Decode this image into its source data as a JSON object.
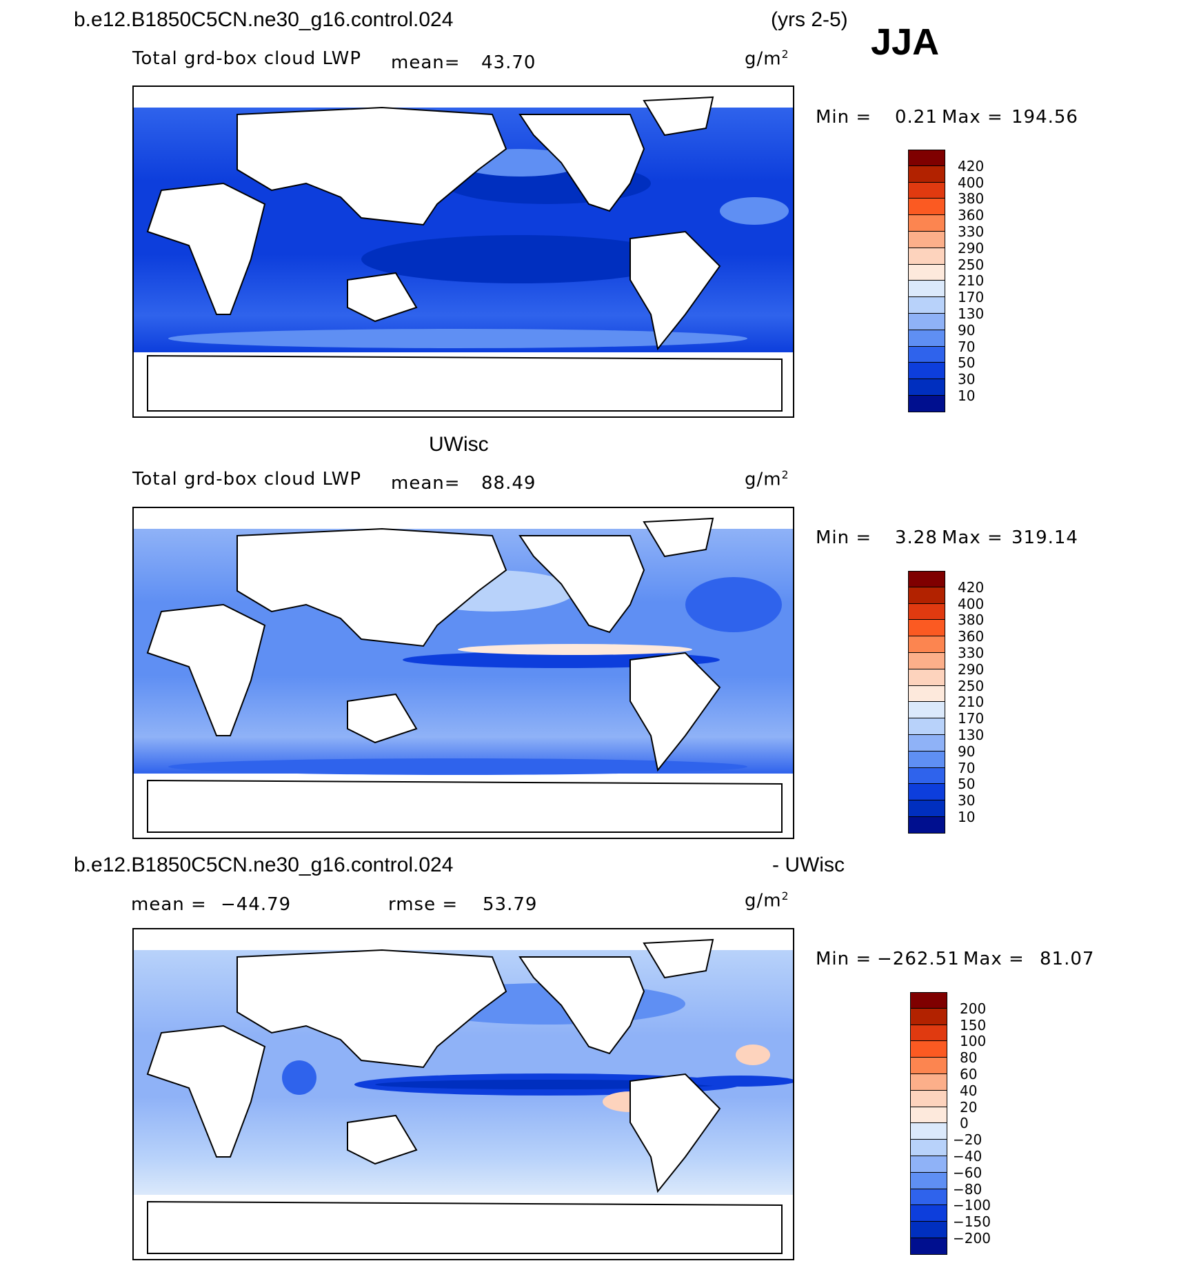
{
  "header": {
    "case_title": "b.e12.B1850C5CN.ne30_g16.control.024",
    "years": "(yrs 2-5)",
    "season": "JJA"
  },
  "panels": [
    {
      "id": "model",
      "variable": "Total grd-box cloud LWP",
      "mean_label": "mean=",
      "mean_value": "43.70",
      "units": "g/m",
      "units_sup": "2",
      "min_label": "Min =",
      "min_value": "0.21",
      "max_label": "Max =",
      "max_value": "194.56",
      "colorbar_levels": [
        "420",
        "400",
        "380",
        "360",
        "330",
        "290",
        "250",
        "210",
        "170",
        "130",
        "90",
        "70",
        "50",
        "30",
        "10"
      ]
    },
    {
      "id": "obs",
      "title": "UWisc",
      "variable": "Total grd-box cloud LWP",
      "mean_label": "mean=",
      "mean_value": "88.49",
      "units": "g/m",
      "units_sup": "2",
      "min_label": "Min =",
      "min_value": "3.28",
      "max_label": "Max =",
      "max_value": "319.14",
      "colorbar_levels": [
        "420",
        "400",
        "380",
        "360",
        "330",
        "290",
        "250",
        "210",
        "170",
        "130",
        "90",
        "70",
        "50",
        "30",
        "10"
      ]
    },
    {
      "id": "diff",
      "title_left": "b.e12.B1850C5CN.ne30_g16.control.024",
      "title_right": "- UWisc",
      "mean_label": "mean =",
      "mean_value": "−44.79",
      "rmse_label": "rmse =",
      "rmse_value": "53.79",
      "units": "g/m",
      "units_sup": "2",
      "min_label": "Min =",
      "min_value": "−262.51",
      "max_label": "Max =",
      "max_value": "81.07",
      "colorbar_levels": [
        "200",
        "150",
        "100",
        "80",
        "60",
        "40",
        "20",
        "0",
        "−20",
        "−40",
        "−60",
        "−80",
        "−100",
        "−150",
        "−200"
      ]
    }
  ],
  "colors": {
    "lwp_scale": [
      "#7f0000",
      "#b22200",
      "#e03a10",
      "#fb5a22",
      "#fc8550",
      "#fcaf8a",
      "#fdd3bd",
      "#fde9dc",
      "#dbe9fb",
      "#b8d2fa",
      "#8fb2f7",
      "#5f8ff3",
      "#2f63ec",
      "#0d3edc",
      "#002fbf",
      "#000f8f"
    ],
    "diff_scale": [
      "#7f0000",
      "#b22200",
      "#e03a10",
      "#fb5a22",
      "#fc8550",
      "#fcaf8a",
      "#fdd3bd",
      "#fde9dc",
      "#dbe9fb",
      "#b8d2fa",
      "#8fb2f7",
      "#5f8ff3",
      "#2f63ec",
      "#0d3edc",
      "#002fbf",
      "#000f8f"
    ]
  }
}
